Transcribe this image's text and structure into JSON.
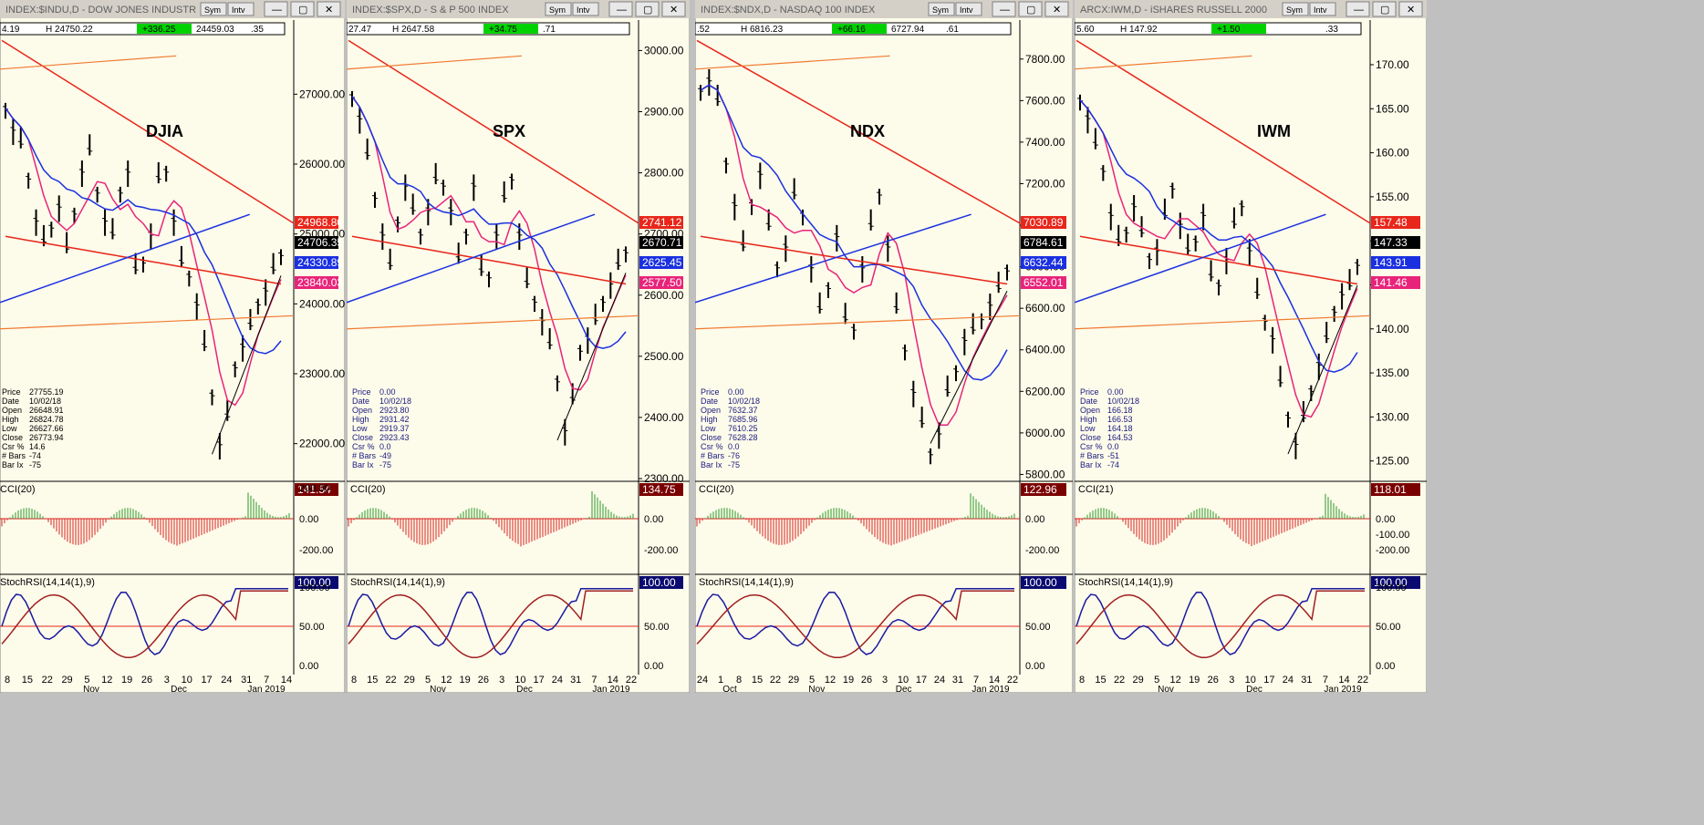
{
  "colors": {
    "bg": "#fdfbea",
    "price_bar": "#000000",
    "ma_red": "#e8261a",
    "ma_blue": "#1a30e0",
    "ma_pink": "#e8247a",
    "orange_line": "#f07a30",
    "cci_pos": "#2a9a2a",
    "cci_neg": "#d62020",
    "stoch_blue": "#1a1aa0",
    "stoch_red": "#a02020",
    "title_bar": "#d4d0c8",
    "highlight_green": "#00d200"
  },
  "ui": {
    "sym_btn": "Sym",
    "intv_btn": "Intv"
  },
  "panels": [
    {
      "title": "INDEX:$INDU,D - DOW JONES INDUSTR",
      "big_label": "DJIA",
      "quote": {
        "left": "4.19",
        "high": "24750.22",
        "change": "+336.25",
        "low": "24459.03",
        "end": ".35"
      },
      "price_ticks": [
        "27000.00",
        "26000.00",
        "25000.00",
        "24000.00",
        "23000.00",
        "22000.00"
      ],
      "price_tags": [
        {
          "text": "24968.80",
          "color": "#e8261a"
        },
        {
          "text": "24706.35",
          "color": "#000000"
        },
        {
          "text": "24330.89",
          "color": "#1a30e0"
        },
        {
          "text": "23840.03",
          "color": "#e8247a"
        }
      ],
      "info": [
        [
          "Price",
          "27755.19"
        ],
        [
          "Date",
          "10/02/18"
        ],
        [
          "Open",
          "26648.91"
        ],
        [
          "High",
          "26824.78"
        ],
        [
          "Low",
          "26627.66"
        ],
        [
          "Close",
          "26773.94"
        ],
        [
          "Csr %",
          "14.6"
        ],
        [
          "# Bars",
          "-74"
        ],
        [
          "Bar Ix",
          "-75"
        ]
      ],
      "cci_label": "CCI(20)",
      "cci_value": "141.54",
      "cci_ticks": [
        "200.00",
        "0.00",
        "-200.00"
      ],
      "stoch_label": "StochRSI(14,14(1),9)",
      "stoch_value": "100.00",
      "stoch_ticks": [
        "100.00",
        "50.00",
        "0.00"
      ],
      "x_days": [
        "8",
        "15",
        "22",
        "29",
        "5",
        "12",
        "19",
        "26",
        "3",
        "10",
        "17",
        "24",
        "31",
        "7",
        "14"
      ],
      "x_months": [
        "Nov",
        "Dec",
        "Jan 2019"
      ]
    },
    {
      "title": "INDEX:$SPX,D - S & P 500 INDEX",
      "big_label": "SPX",
      "quote": {
        "left": "27.47",
        "high": "2647.58",
        "change": "+34.75",
        "low": ".71",
        "end": ""
      },
      "price_ticks": [
        "3000.00",
        "2900.00",
        "2800.00",
        "2700.00",
        "2600.00",
        "2500.00",
        "2400.00",
        "2300.00"
      ],
      "price_tags": [
        {
          "text": "2741.12",
          "color": "#e8261a"
        },
        {
          "text": "2670.71",
          "color": "#000000"
        },
        {
          "text": "2625.45",
          "color": "#1a30e0"
        },
        {
          "text": "2577.50",
          "color": "#e8247a"
        }
      ],
      "info": [
        [
          "Price",
          "0.00"
        ],
        [
          "Date",
          "10/02/18"
        ],
        [
          "Open",
          "2923.80"
        ],
        [
          "High",
          "2931.42"
        ],
        [
          "Low",
          "2919.37"
        ],
        [
          "Close",
          "2923.43"
        ],
        [
          "Csr %",
          "0.0"
        ],
        [
          "# Bars",
          "-49"
        ],
        [
          "Bar Ix",
          "-75"
        ]
      ],
      "cci_label": "CCI(20)",
      "cci_value": "134.75",
      "cci_ticks": [
        "0.00",
        "-200.00"
      ],
      "stoch_label": "StochRSI(14,14(1),9)",
      "stoch_value": "100.00",
      "stoch_ticks": [
        "50.00",
        "0.00"
      ],
      "x_days": [
        "8",
        "15",
        "22",
        "29",
        "5",
        "12",
        "19",
        "26",
        "3",
        "10",
        "17",
        "24",
        "31",
        "7",
        "14",
        "22"
      ],
      "x_months": [
        "Nov",
        "Dec",
        "Jan 2019"
      ]
    },
    {
      "title": "INDEX:$NDX,D - NASDAQ 100 INDEX",
      "big_label": "NDX",
      "quote": {
        "left": ".52",
        "high": "6816.23",
        "change": "+66.16",
        "low": "6727.94",
        "end": ".61"
      },
      "price_ticks": [
        "7800.00",
        "7600.00",
        "7400.00",
        "7200.00",
        "7000.00",
        "6800.00",
        "6600.00",
        "6400.00",
        "6200.00",
        "6000.00",
        "5800.00"
      ],
      "price_tags": [
        {
          "text": "7030.89",
          "color": "#e8261a"
        },
        {
          "text": "6784.61",
          "color": "#000000"
        },
        {
          "text": "6632.44",
          "color": "#1a30e0"
        },
        {
          "text": "6552.01",
          "color": "#e8247a"
        }
      ],
      "info": [
        [
          "Price",
          "0.00"
        ],
        [
          "Date",
          "10/02/18"
        ],
        [
          "Open",
          "7632.37"
        ],
        [
          "High",
          "7685.96"
        ],
        [
          "Low",
          "7610.25"
        ],
        [
          "Close",
          "7628.28"
        ],
        [
          "Csr %",
          "0.0"
        ],
        [
          "# Bars",
          "-76"
        ],
        [
          "Bar Ix",
          "-75"
        ]
      ],
      "cci_label": "CCI(20)",
      "cci_value": "122.96",
      "cci_ticks": [
        "0.00",
        "-200.00"
      ],
      "stoch_label": "StochRSI(14,14(1),9)",
      "stoch_value": "100.00",
      "stoch_ticks": [
        "50.00",
        "0.00"
      ],
      "x_days": [
        "24",
        "1",
        "8",
        "15",
        "22",
        "29",
        "5",
        "12",
        "19",
        "26",
        "3",
        "10",
        "17",
        "24",
        "31",
        "7",
        "14",
        "22"
      ],
      "x_months": [
        "Oct",
        "Nov",
        "Dec",
        "Jan 2019"
      ]
    },
    {
      "title": "ARCX:IWM,D - iSHARES RUSSELL 2000",
      "big_label": "IWM",
      "quote": {
        "left": "5.60",
        "high": "147.92",
        "change": "+1.50",
        "low": "",
        "end": ".33"
      },
      "price_ticks": [
        "170.00",
        "165.00",
        "160.00",
        "155.00",
        "150.00",
        "145.00",
        "140.00",
        "135.00",
        "130.00",
        "125.00"
      ],
      "price_tags": [
        {
          "text": "157.48",
          "color": "#e8261a"
        },
        {
          "text": "147.33",
          "color": "#000000"
        },
        {
          "text": "143.91",
          "color": "#1a30e0"
        },
        {
          "text": "141.46",
          "color": "#e8247a"
        }
      ],
      "info": [
        [
          "Price",
          "0.00"
        ],
        [
          "Date",
          "10/02/18"
        ],
        [
          "Open",
          "166.18"
        ],
        [
          "High",
          "166.53"
        ],
        [
          "Low",
          "164.18"
        ],
        [
          "Close",
          "164.53"
        ],
        [
          "Csr %",
          "0.0"
        ],
        [
          "# Bars",
          "-51"
        ],
        [
          "Bar Ix",
          "-74"
        ]
      ],
      "cci_label": "CCI(21)",
      "cci_value": "118.01",
      "cci_ticks": [
        "0.00",
        "-100.00",
        "-200.00"
      ],
      "stoch_label": "StochRSI(14,14(1),9)",
      "stoch_value": "100.00",
      "stoch_ticks": [
        "100.00",
        "50.00",
        "0.00"
      ],
      "x_days": [
        "8",
        "15",
        "22",
        "29",
        "5",
        "12",
        "19",
        "26",
        "3",
        "10",
        "17",
        "24",
        "31",
        "7",
        "14",
        "22"
      ],
      "x_months": [
        "Nov",
        "Dec",
        "Jan 2019"
      ]
    }
  ],
  "chart_data": [
    {
      "type": "line",
      "title": "DJIA",
      "ylim": [
        21500,
        27800
      ],
      "series": [
        {
          "name": "",
          "values": [
            26800,
            26500,
            26300,
            25800,
            25200,
            24900,
            25100,
            25400,
            24800,
            25300,
            25900,
            26200,
            25600,
            25200,
            25000,
            25600,
            25900,
            24500,
            24600,
            25000,
            25800,
            25900,
            25200,
            24600,
            24400,
            24000,
            23400,
            22700,
            22000,
            22400,
            23100,
            23400,
            23700,
            24000,
            24200,
            24500,
            24706
          ]
        }
      ]
    },
    {
      "type": "line",
      "title": "SPX",
      "ylim": [
        2300,
        3020
      ],
      "series": [
        {
          "name": "",
          "values": [
            2925,
            2890,
            2830,
            2760,
            2700,
            2650,
            2720,
            2780,
            2740,
            2700,
            2740,
            2790,
            2780,
            2740,
            2660,
            2700,
            2780,
            2640,
            2630,
            2700,
            2760,
            2790,
            2700,
            2620,
            2590,
            2560,
            2520,
            2460,
            2380,
            2430,
            2510,
            2530,
            2560,
            2590,
            2620,
            2650,
            2671
          ]
        }
      ]
    },
    {
      "type": "line",
      "title": "NDX",
      "ylim": [
        5780,
        7900
      ],
      "series": [
        {
          "name": "",
          "values": [
            7650,
            7700,
            7600,
            7300,
            7100,
            6900,
            7100,
            7250,
            7000,
            6800,
            6900,
            7150,
            7050,
            6800,
            6600,
            6700,
            6950,
            6550,
            6500,
            6800,
            7000,
            7150,
            6900,
            6600,
            6400,
            6200,
            6050,
            5900,
            6000,
            6200,
            6300,
            6450,
            6500,
            6550,
            6620,
            6700,
            6785
          ]
        }
      ]
    },
    {
      "type": "line",
      "title": "IWM",
      "ylim": [
        123,
        173
      ],
      "series": [
        {
          "name": "",
          "values": [
            166,
            164,
            161,
            158,
            153,
            150,
            151,
            154,
            151,
            148,
            149,
            153,
            156,
            152,
            149,
            150,
            153,
            146,
            145,
            148,
            152,
            154,
            149,
            144,
            141,
            139,
            134,
            130,
            127,
            130,
            133,
            136,
            139,
            142,
            144,
            145,
            147.33
          ]
        }
      ]
    }
  ]
}
